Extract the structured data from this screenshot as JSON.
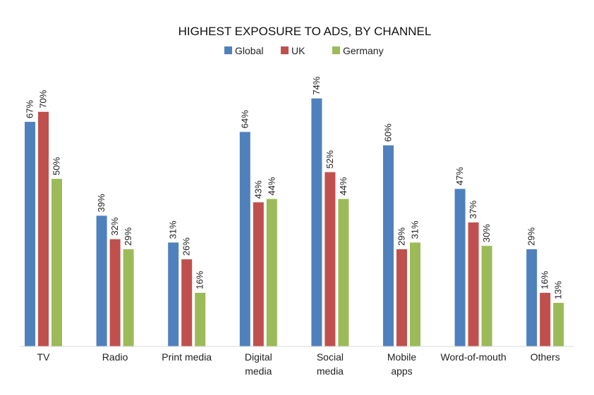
{
  "chart_data": {
    "type": "bar",
    "title": "HIGHEST EXPOSURE TO ADS, BY CHANNEL",
    "categories": [
      [
        "TV"
      ],
      [
        "Radio"
      ],
      [
        "Print media"
      ],
      [
        "Digital",
        "media"
      ],
      [
        "Social",
        "media"
      ],
      [
        "Mobile",
        "apps"
      ],
      [
        "Word-of-mouth"
      ],
      [
        "Others"
      ]
    ],
    "series": [
      {
        "name": "Global",
        "color": "#4F81BD",
        "values": [
          67,
          39,
          31,
          64,
          74,
          60,
          47,
          29
        ],
        "labels": [
          "67%",
          "39%",
          "31%",
          "64%",
          "74%",
          "60%",
          "47%",
          "29%"
        ]
      },
      {
        "name": "UK",
        "color": "#C0504D",
        "values": [
          70,
          32,
          26,
          43,
          52,
          29,
          37,
          16
        ],
        "labels": [
          "70%",
          "32%",
          "26%",
          "43%",
          "52%",
          "29%",
          "37%",
          "16%"
        ]
      },
      {
        "name": "Germany",
        "color": "#9BBB59",
        "values": [
          50,
          29,
          16,
          44,
          44,
          31,
          30,
          13
        ],
        "labels": [
          "50%",
          "29%",
          "16%",
          "44%",
          "44%",
          "31%",
          "30%",
          "13%"
        ]
      }
    ],
    "ylim": [
      0,
      80
    ],
    "grid": false,
    "legend_position": "top-center"
  }
}
